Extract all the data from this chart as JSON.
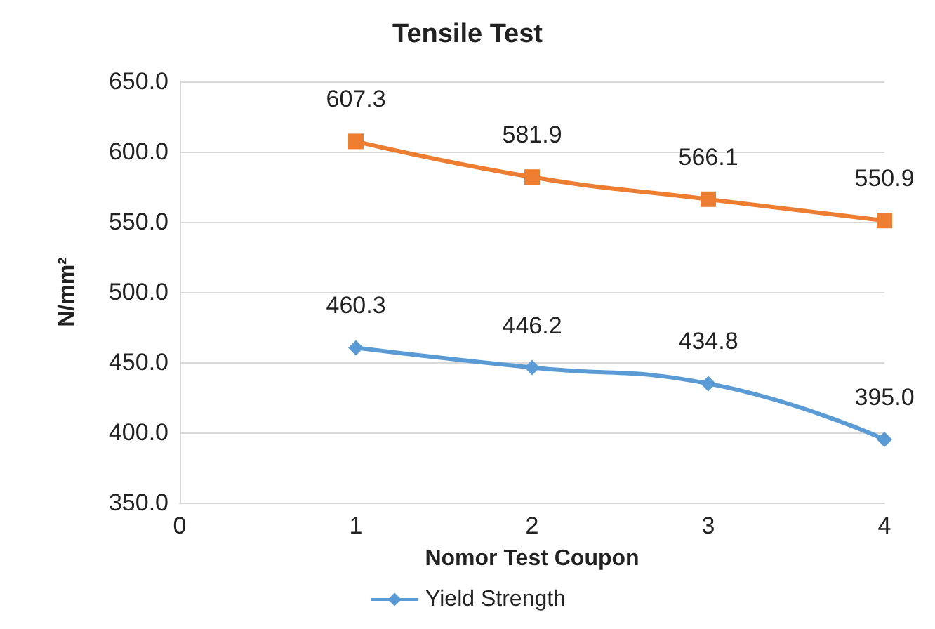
{
  "chart_data": {
    "type": "line",
    "title": "Tensile Test",
    "xlabel": "Nomor Test Coupon",
    "ylabel": "N/mm²",
    "x": [
      1,
      2,
      3,
      4
    ],
    "series": [
      {
        "color": "#ed7d31",
        "marker": "square",
        "values": [
          607.3,
          581.9,
          566.1,
          550.9
        ],
        "value_labels": [
          "607.3",
          "581.9",
          "566.1",
          "550.9"
        ]
      },
      {
        "name": "Yield Strength",
        "color": "#5b9bd5",
        "marker": "diamond",
        "values": [
          460.3,
          446.2,
          434.8,
          395.0
        ],
        "value_labels": [
          "460.3",
          "446.2",
          "434.8",
          "395.0"
        ]
      }
    ],
    "xlim": [
      0,
      4
    ],
    "xticks": [
      0,
      1,
      2,
      3,
      4
    ],
    "ylim": [
      350,
      650
    ],
    "yticks": [
      {
        "value": 350,
        "label": "350.0"
      },
      {
        "value": 400,
        "label": "400.0"
      },
      {
        "value": 450,
        "label": "450.0"
      },
      {
        "value": 500,
        "label": "500.0"
      },
      {
        "value": 550,
        "label": "550.0"
      },
      {
        "value": 600,
        "label": "600.0"
      },
      {
        "value": 650,
        "label": "650.0"
      }
    ],
    "grid": "y",
    "legend": "bottom"
  }
}
